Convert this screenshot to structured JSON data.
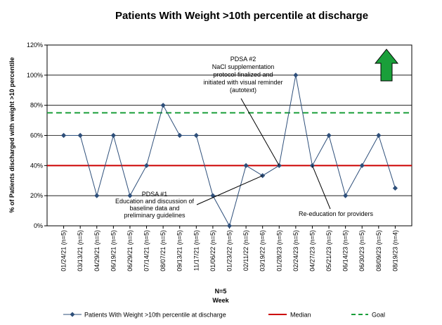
{
  "chart_data": {
    "type": "line",
    "title": "Patients With Weight >10th percentile at discharge",
    "ylabel": "% of Patients discharged with weight >10 percentile",
    "xlabel_line1": "N=5",
    "xlabel_line2": "Week",
    "ylim": [
      0,
      1.2
    ],
    "yticks": [
      0,
      0.2,
      0.4,
      0.6,
      0.8,
      1.0,
      1.2
    ],
    "ytick_labels": [
      "0%",
      "20%",
      "40%",
      "60%",
      "80%",
      "100%",
      "120%"
    ],
    "categories": [
      "01/24/21 (n=5)",
      "03/13/21 (n=5)",
      "04/29/21 (n=5)",
      "06/19/21 (n=5)",
      "06/29/21 (n=5)",
      "07/14/21 (n=5)",
      "08/07/21 (n=5)",
      "09/13/21 (n=5)",
      "11/17/21 (n=5)",
      "01/06/22 (n=5)",
      "01/23/22 (n=5)",
      "02/11/22 (n=5)",
      "03/19/22 (n=6)",
      "01/28/23 (n=5)",
      "02/24/23 (n=5)",
      "04/27/23 (n=5)",
      "05/21/23 (n=5)",
      "06/14/23 (n=5)",
      "06/30/23 (n=5)",
      "08/09/23 (n=5)",
      "08/19/23 (n=4)"
    ],
    "series": [
      {
        "name": "Patients With Weight >10th percentile at discharge",
        "color": "#2e4f7a",
        "values": [
          0.6,
          0.6,
          0.2,
          0.6,
          0.2,
          0.4,
          0.8,
          0.6,
          0.6,
          0.2,
          0.0,
          0.4,
          0.333,
          0.4,
          1.0,
          0.4,
          0.6,
          0.2,
          0.4,
          0.6,
          0.25
        ]
      }
    ],
    "median": {
      "name": "Median",
      "value": 0.4,
      "color": "#cc0000"
    },
    "goal": {
      "name": "Goal",
      "value": 0.75,
      "color": "#1a9f3a"
    },
    "annotations": [
      {
        "lines": [
          "PDSA #2",
          "NaCl supplementation",
          "protocol finalized and",
          "initiated with visual reminder",
          "(autotext)"
        ],
        "target_index": 13
      },
      {
        "lines": [
          "PDSA #1",
          "Education and discussion of",
          "baseline data and",
          "preliminary guidelines"
        ],
        "target_index": 12
      },
      {
        "lines": [
          "Re-education for providers"
        ],
        "target_index": 15
      }
    ],
    "grid": true,
    "legend_position": "bottom",
    "goal_arrow": "up",
    "goal_arrow_color": "#1a9f3a"
  }
}
